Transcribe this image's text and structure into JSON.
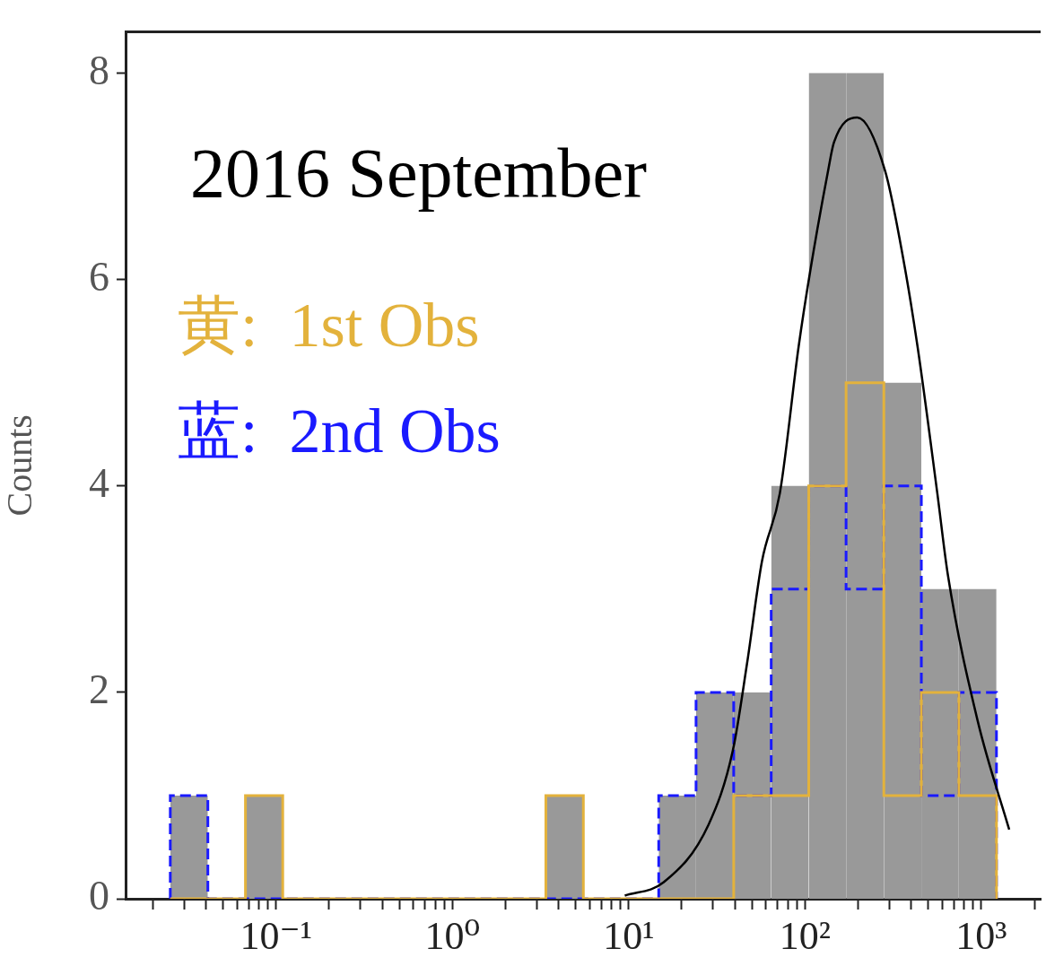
{
  "chart_data": {
    "type": "histogram",
    "title": "2016 September",
    "ylabel": "Counts",
    "bins": [
      0.0251,
      0.041,
      0.067,
      0.109,
      0.179,
      0.292,
      0.476,
      0.778,
      1.27,
      2.07,
      3.39,
      5.53,
      9.04,
      14.8,
      24.1,
      39.4,
      64.3,
      105,
      171,
      280,
      457,
      746,
      1219
    ],
    "series": [
      {
        "color": "#999999",
        "values": [
          1,
          0,
          1,
          0,
          0,
          0,
          0,
          0,
          0,
          0,
          1,
          0,
          0,
          1,
          2,
          2,
          4,
          8,
          8,
          5,
          3,
          3
        ]
      },
      {
        "name": "黄:  1st Obs",
        "color": "#e3b23c",
        "line_style": "solid",
        "values": [
          0,
          0,
          1,
          0,
          0,
          0,
          0,
          0,
          0,
          0,
          1,
          0,
          0,
          0,
          0,
          1,
          1,
          4,
          5,
          1,
          2,
          1
        ]
      },
      {
        "name": "蓝:  2nd Obs",
        "color": "#1a1aff",
        "line_style": "dashed",
        "values": [
          1,
          0,
          0,
          0,
          0,
          0,
          0,
          0,
          0,
          0,
          0,
          0,
          0,
          1,
          2,
          1,
          3,
          4,
          3,
          4,
          1,
          2
        ]
      },
      {
        "type": "line",
        "color": "#000000",
        "x": [
          9.5,
          15.8,
          28.4,
          39,
          47,
          57,
          72,
          92,
          107,
          135,
          146,
          198,
          285,
          361,
          435,
          563,
          646,
          955,
          1440
        ],
        "values": [
          0.03,
          0.16,
          0.72,
          1.44,
          2.29,
          3.27,
          3.93,
          5.35,
          6.08,
          7.05,
          7.33,
          7.57,
          7.05,
          6.2,
          5.35,
          3.93,
          3.14,
          1.72,
          0.67
        ]
      }
    ],
    "log": "x",
    "legend": "top left",
    "grid": false,
    "xlim": [
      0.014,
      2170
    ],
    "xticks": [
      {
        "value": 0.02,
        "label": null
      },
      {
        "value": 0.03,
        "label": null
      },
      {
        "value": 0.04,
        "label": null
      },
      {
        "value": 0.05,
        "label": null
      },
      {
        "value": 0.06,
        "label": null
      },
      {
        "value": 0.07,
        "label": null
      },
      {
        "value": 0.08,
        "label": null
      },
      {
        "value": 0.09,
        "label": null
      },
      {
        "value": 0.1,
        "label": "10⁻¹"
      },
      {
        "value": 0.2,
        "label": null
      },
      {
        "value": 0.3,
        "label": null
      },
      {
        "value": 0.4,
        "label": null
      },
      {
        "value": 0.5,
        "label": null
      },
      {
        "value": 0.6,
        "label": null
      },
      {
        "value": 0.7,
        "label": null
      },
      {
        "value": 0.8,
        "label": null
      },
      {
        "value": 0.9,
        "label": null
      },
      {
        "value": 1,
        "label": "10⁰"
      },
      {
        "value": 2,
        "label": null
      },
      {
        "value": 3,
        "label": null
      },
      {
        "value": 4,
        "label": null
      },
      {
        "value": 5,
        "label": null
      },
      {
        "value": 6,
        "label": null
      },
      {
        "value": 7,
        "label": null
      },
      {
        "value": 8,
        "label": null
      },
      {
        "value": 9,
        "label": null
      },
      {
        "value": 10,
        "label": "10¹"
      },
      {
        "value": 20,
        "label": null
      },
      {
        "value": 30,
        "label": null
      },
      {
        "value": 40,
        "label": null
      },
      {
        "value": 50,
        "label": null
      },
      {
        "value": 60,
        "label": null
      },
      {
        "value": 70,
        "label": null
      },
      {
        "value": 80,
        "label": null
      },
      {
        "value": 90,
        "label": null
      },
      {
        "value": 100,
        "label": "10²"
      },
      {
        "value": 200,
        "label": null
      },
      {
        "value": 300,
        "label": null
      },
      {
        "value": 400,
        "label": null
      },
      {
        "value": 500,
        "label": null
      },
      {
        "value": 600,
        "label": null
      },
      {
        "value": 700,
        "label": null
      },
      {
        "value": 800,
        "label": null
      },
      {
        "value": 900,
        "label": null
      },
      {
        "value": 1000,
        "label": "10³"
      },
      {
        "value": 2000,
        "label": null
      }
    ],
    "ylim": [
      0,
      8.4
    ],
    "yticks": [
      0,
      2,
      4,
      6,
      8
    ]
  }
}
